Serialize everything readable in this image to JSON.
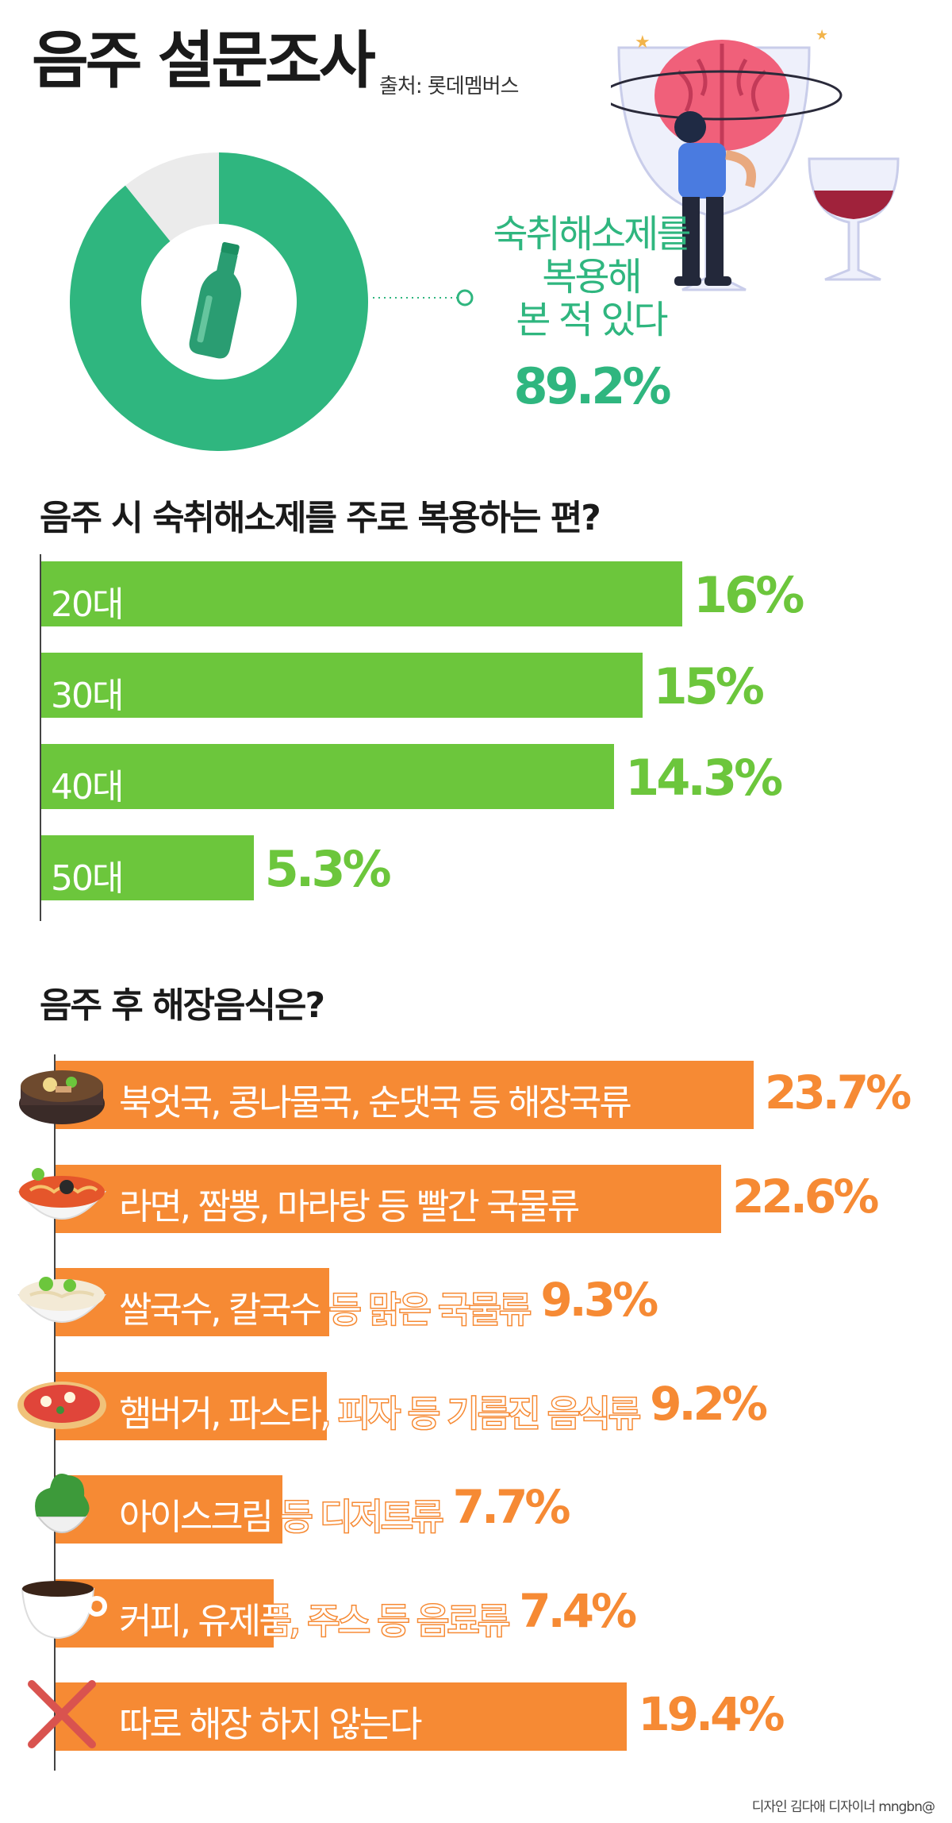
{
  "header": {
    "title": "음주 설문조사",
    "source": "출처: 롯데멤버스"
  },
  "hangover_stat": {
    "text_lines": [
      "숙취해소제를",
      "복용해",
      "본 적 있다"
    ],
    "value": "89.2%"
  },
  "chart_data": [
    {
      "type": "pie",
      "title": "",
      "categories": [
        "숙취해소제를 복용해 본 적 있다",
        ""
      ],
      "values": [
        89.2,
        10.8
      ],
      "colors": [
        "#2fb67f",
        "#ebebeb"
      ]
    },
    {
      "type": "bar",
      "orientation": "horizontal",
      "title": "음주 시 숙취해소제를 주로 복용하는 편?",
      "categories": [
        "20대",
        "30대",
        "40대",
        "50대"
      ],
      "values": [
        16,
        15,
        14.3,
        5.3
      ],
      "value_labels": [
        "16%",
        "15%",
        "14.3%",
        "5.3%"
      ],
      "color": "#6cc63c"
    },
    {
      "type": "bar",
      "orientation": "horizontal",
      "title": "음주 후 해장음식은?",
      "categories": [
        "북엇국, 콩나물국, 순댓국 등 해장국류",
        "라면, 짬뽕, 마라탕 등 빨간 국물류",
        "쌀국수, 칼국수 등 맑은 국물류",
        "햄버거, 파스타, 피자 등 기름진 음식류",
        "아이스크림 등 디저트류",
        "커피, 유제품, 주스 등 음료류",
        "따로 해장 하지 않는다"
      ],
      "values": [
        23.7,
        22.6,
        9.3,
        9.2,
        7.7,
        7.4,
        19.4
      ],
      "value_labels": [
        "23.7%",
        "22.6%",
        "9.3%",
        "9.2%",
        "7.7%",
        "7.4%",
        "19.4%"
      ],
      "icons": [
        "hangover-soup-icon",
        "spicy-noodle-icon",
        "clear-noodle-icon",
        "pizza-icon",
        "ice-cream-icon",
        "coffee-cup-icon",
        "x-mark-icon"
      ],
      "color": "#f68a34"
    }
  ],
  "credit": "디자인 김다애 디자이너 mngbn@"
}
